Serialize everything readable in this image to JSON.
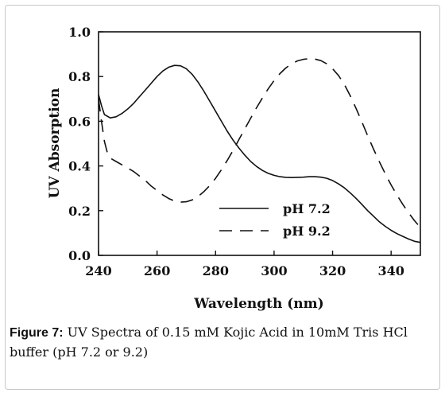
{
  "figure": {
    "caption_label": "Figure 7:",
    "caption_text": " UV Spectra of 0.15 mM Kojic Acid in 10mM Tris HCl buffer (pH 7.2 or 9.2)"
  },
  "chart_data": {
    "type": "line",
    "xlabel": "Wavelength (nm)",
    "ylabel": "UV Absorption",
    "xlim": [
      240,
      350
    ],
    "ylim": [
      0.0,
      1.0
    ],
    "x_ticks": [
      240,
      260,
      280,
      300,
      320,
      340
    ],
    "y_ticks": [
      "0.0",
      "0.2",
      "0.4",
      "0.6",
      "0.8",
      "1.0"
    ],
    "grid": false,
    "legend_position": "lower-right",
    "series": [
      {
        "name": "pH 7.2",
        "style": "solid",
        "x": [
          240,
          241,
          242,
          244,
          246,
          248,
          250,
          252,
          254,
          256,
          258,
          260,
          262,
          264,
          266,
          268,
          270,
          272,
          274,
          276,
          278,
          280,
          282,
          284,
          286,
          288,
          290,
          292,
          294,
          296,
          298,
          300,
          302,
          304,
          306,
          308,
          310,
          312,
          314,
          316,
          318,
          320,
          322,
          324,
          326,
          328,
          330,
          332,
          334,
          336,
          338,
          340,
          342,
          344,
          346,
          348,
          350
        ],
        "y": [
          0.72,
          0.67,
          0.63,
          0.615,
          0.62,
          0.635,
          0.655,
          0.68,
          0.71,
          0.74,
          0.77,
          0.8,
          0.825,
          0.842,
          0.85,
          0.848,
          0.835,
          0.81,
          0.775,
          0.735,
          0.69,
          0.645,
          0.6,
          0.555,
          0.515,
          0.48,
          0.448,
          0.42,
          0.398,
          0.38,
          0.367,
          0.358,
          0.352,
          0.349,
          0.348,
          0.349,
          0.35,
          0.352,
          0.352,
          0.35,
          0.345,
          0.335,
          0.32,
          0.302,
          0.28,
          0.255,
          0.228,
          0.2,
          0.175,
          0.15,
          0.13,
          0.112,
          0.097,
          0.085,
          0.073,
          0.063,
          0.058
        ]
      },
      {
        "name": "pH 9.2",
        "style": "dashed",
        "x": [
          240,
          241,
          242,
          243,
          244,
          246,
          248,
          250,
          252,
          254,
          256,
          258,
          260,
          262,
          264,
          266,
          268,
          270,
          272,
          274,
          276,
          278,
          280,
          282,
          284,
          286,
          288,
          290,
          292,
          294,
          296,
          298,
          300,
          302,
          304,
          306,
          308,
          310,
          312,
          314,
          316,
          318,
          320,
          322,
          324,
          326,
          328,
          330,
          332,
          334,
          336,
          338,
          340,
          342,
          344,
          346,
          348,
          350
        ],
        "y": [
          0.7,
          0.6,
          0.51,
          0.46,
          0.435,
          0.42,
          0.405,
          0.39,
          0.375,
          0.355,
          0.335,
          0.31,
          0.29,
          0.27,
          0.254,
          0.243,
          0.238,
          0.24,
          0.248,
          0.263,
          0.285,
          0.312,
          0.345,
          0.383,
          0.425,
          0.47,
          0.518,
          0.566,
          0.614,
          0.66,
          0.704,
          0.745,
          0.782,
          0.813,
          0.838,
          0.857,
          0.87,
          0.877,
          0.88,
          0.878,
          0.871,
          0.857,
          0.835,
          0.805,
          0.765,
          0.715,
          0.658,
          0.597,
          0.535,
          0.475,
          0.418,
          0.365,
          0.315,
          0.27,
          0.228,
          0.19,
          0.155,
          0.125
        ]
      }
    ]
  }
}
